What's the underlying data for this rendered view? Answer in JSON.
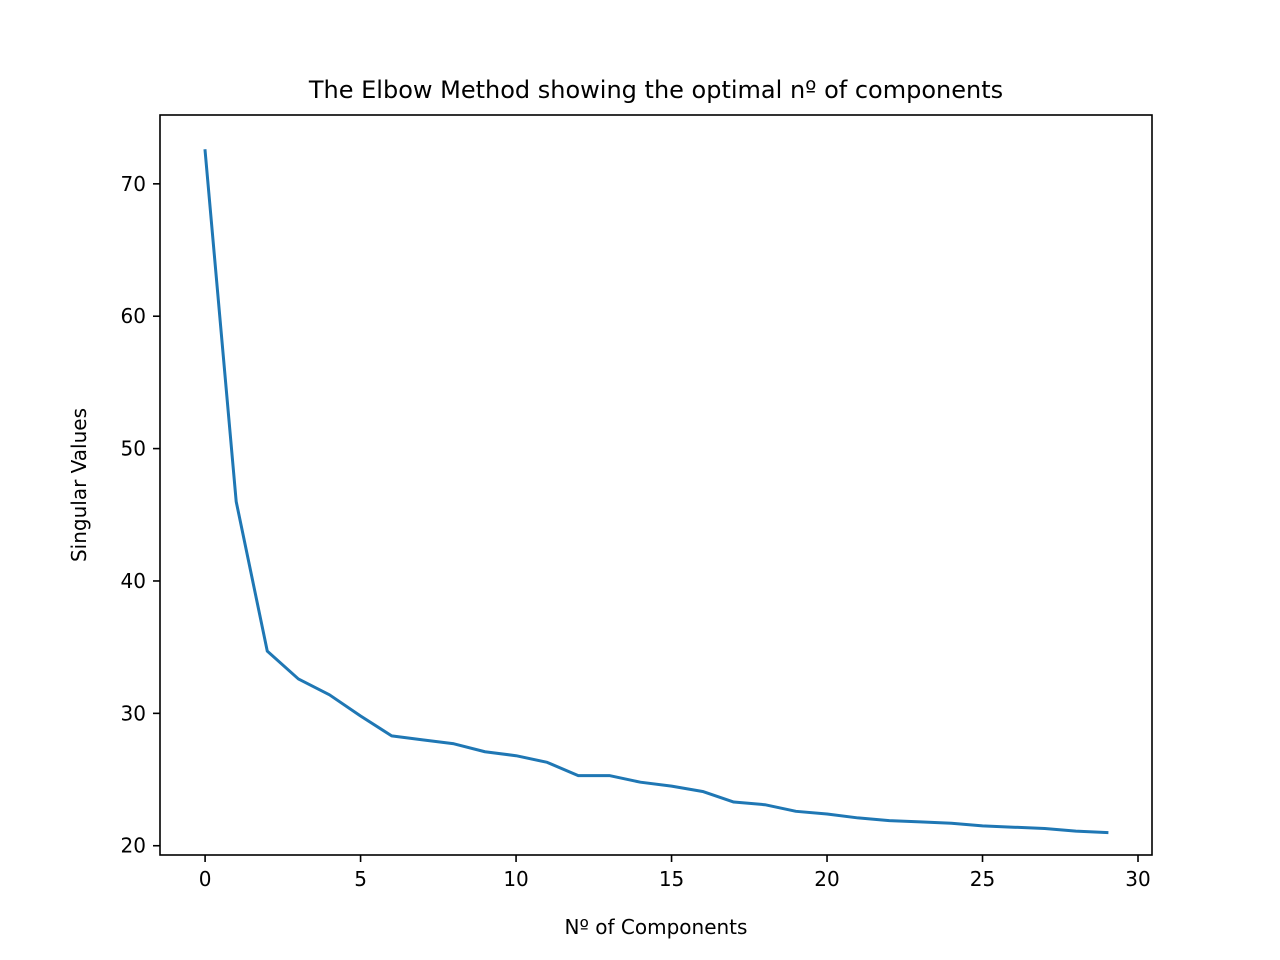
{
  "chart_data": {
    "type": "line",
    "title": "The Elbow Method showing the optimal nº of components",
    "xlabel": "Nº of Components",
    "ylabel": "Singular Values",
    "xlim": [
      -1.45,
      30.45
    ],
    "ylim": [
      19.3,
      75.2
    ],
    "grid": false,
    "x_ticks": [
      0,
      5,
      10,
      15,
      20,
      25,
      30
    ],
    "y_ticks": [
      20,
      30,
      40,
      50,
      60,
      70
    ],
    "series": [
      {
        "color": "#1f77b4",
        "x": [
          0,
          1,
          2,
          3,
          4,
          5,
          6,
          7,
          8,
          9,
          10,
          11,
          12,
          13,
          14,
          15,
          16,
          17,
          18,
          19,
          20,
          21,
          22,
          23,
          24,
          25,
          26,
          27,
          28,
          29
        ],
        "y": [
          72.5,
          46.0,
          34.7,
          32.6,
          31.4,
          29.8,
          28.3,
          28.0,
          27.7,
          27.1,
          26.8,
          26.3,
          25.3,
          25.3,
          24.8,
          24.5,
          24.1,
          23.3,
          23.1,
          22.6,
          22.4,
          22.1,
          21.9,
          21.8,
          21.7,
          21.5,
          21.4,
          21.3,
          21.1,
          21.0
        ]
      }
    ]
  }
}
